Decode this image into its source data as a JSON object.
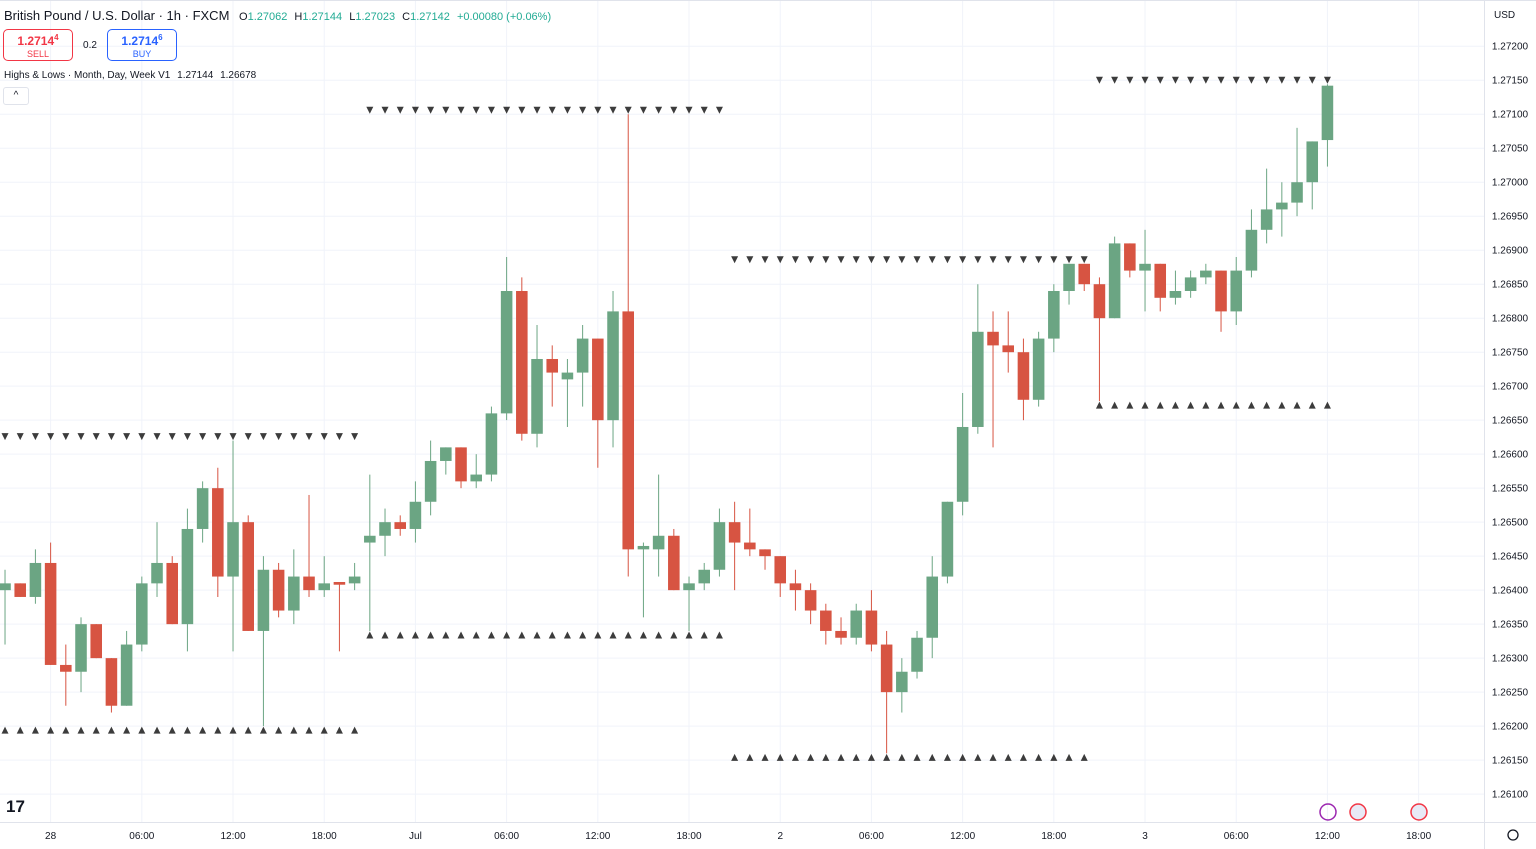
{
  "header": {
    "symbol": "British Pound / U.S. Dollar · 1h · FXCM",
    "ohlc": [
      {
        "label": "O",
        "value": "1.27062"
      },
      {
        "label": "H",
        "value": "1.27144"
      },
      {
        "label": "L",
        "value": "1.27023"
      },
      {
        "label": "C",
        "value": "1.27142"
      }
    ],
    "change": "+0.00080 (+0.06%)",
    "sell": {
      "price": "1.2714",
      "price_sup": "4",
      "label": "SELL"
    },
    "spread": "0.2",
    "buy": {
      "price": "1.2714",
      "price_sup": "6",
      "label": "BUY"
    },
    "indicator": {
      "name": "Highs & Lows · Month, Day, Week V1",
      "values": [
        "1.27144",
        "1.26678"
      ]
    },
    "currency": "USD"
  },
  "chart_data": {
    "type": "candlestick",
    "up_color": "#6ba583",
    "down_color": "#d75442",
    "grid": true,
    "open": [
      1.264,
      1.2641,
      1.2639,
      1.2644,
      1.2629,
      1.2628,
      1.2635,
      1.263,
      1.2623,
      1.2632,
      1.2641,
      1.2644,
      1.2635,
      1.2649,
      1.2655,
      1.2642,
      1.265,
      1.2634,
      1.2643,
      1.2637,
      1.2642,
      1.264,
      1.26412,
      1.2641,
      1.2647,
      1.2648,
      1.265,
      1.2649,
      1.2653,
      1.2659,
      1.2661,
      1.2656,
      1.2657,
      1.2666,
      1.2684,
      1.2663,
      1.2674,
      1.2671,
      1.2672,
      1.2677,
      1.2665,
      1.2681,
      1.2646,
      1.2646,
      1.2648,
      1.264,
      1.2641,
      1.2643,
      1.265,
      1.2647,
      1.2646,
      1.2645,
      1.2641,
      1.264,
      1.2637,
      1.2634,
      1.2633,
      1.2637,
      1.2632,
      1.2625,
      1.2628,
      1.2633,
      1.2642,
      1.2653,
      1.2664,
      1.2678,
      1.2676,
      1.2675,
      1.2668,
      1.2677,
      1.2684,
      1.2688,
      1.2685,
      1.268,
      1.2691,
      1.2687,
      1.2688,
      1.2683,
      1.2684,
      1.2686,
      1.2687,
      1.2681,
      1.2687,
      1.2693,
      1.2696,
      1.2697,
      1.27,
      1.27062
    ],
    "high": [
      1.2643,
      1.2641,
      1.2646,
      1.2647,
      1.2632,
      1.2636,
      1.2635,
      1.263,
      1.2634,
      1.2642,
      1.265,
      1.2645,
      1.2652,
      1.2656,
      1.2658,
      1.2662,
      1.2651,
      1.2645,
      1.2644,
      1.2646,
      1.2654,
      1.2645,
      1.2641,
      1.2644,
      1.2657,
      1.2652,
      1.2651,
      1.2656,
      1.2662,
      1.2661,
      1.2661,
      1.266,
      1.2667,
      1.2689,
      1.2686,
      1.2679,
      1.2676,
      1.2674,
      1.2679,
      1.2677,
      1.2684,
      1.271,
      1.2647,
      1.2657,
      1.2649,
      1.2642,
      1.2644,
      1.2652,
      1.2653,
      1.2652,
      1.2646,
      1.2645,
      1.2643,
      1.2641,
      1.2638,
      1.2636,
      1.2638,
      1.264,
      1.2634,
      1.263,
      1.2634,
      1.2645,
      1.2653,
      1.2669,
      1.2685,
      1.2681,
      1.2681,
      1.2677,
      1.2678,
      1.2685,
      1.2688,
      1.2688,
      1.2686,
      1.2692,
      1.2691,
      1.2693,
      1.2688,
      1.2687,
      1.2687,
      1.2688,
      1.2687,
      1.2689,
      1.2696,
      1.2702,
      1.27,
      1.2708,
      1.2706,
      1.27144
    ],
    "low": [
      1.2632,
      1.2639,
      1.2638,
      1.2629,
      1.2623,
      1.2625,
      1.263,
      1.2622,
      1.2623,
      1.2631,
      1.2639,
      1.2635,
      1.2631,
      1.2647,
      1.2639,
      1.2631,
      1.2634,
      1.262,
      1.2636,
      1.2635,
      1.2639,
      1.2639,
      1.2631,
      1.264,
      1.2634,
      1.2645,
      1.2648,
      1.2647,
      1.2651,
      1.2657,
      1.2655,
      1.2655,
      1.2656,
      1.2665,
      1.2662,
      1.2661,
      1.2667,
      1.2664,
      1.2667,
      1.2658,
      1.2661,
      1.2642,
      1.2636,
      1.2642,
      1.264,
      1.2634,
      1.264,
      1.2642,
      1.264,
      1.2645,
      1.2643,
      1.2639,
      1.2637,
      1.2635,
      1.2632,
      1.2632,
      1.2632,
      1.2631,
      1.2616,
      1.2622,
      1.2627,
      1.263,
      1.2641,
      1.2651,
      1.2663,
      1.2661,
      1.2672,
      1.2665,
      1.2667,
      1.2675,
      1.2682,
      1.2684,
      1.26678,
      1.268,
      1.2686,
      1.2681,
      1.2681,
      1.2682,
      1.2683,
      1.2685,
      1.2678,
      1.2679,
      1.2686,
      1.2691,
      1.2692,
      1.2695,
      1.2696,
      1.27023
    ],
    "close": [
      1.2641,
      1.2639,
      1.2644,
      1.2629,
      1.2628,
      1.2635,
      1.263,
      1.2623,
      1.2632,
      1.2641,
      1.2644,
      1.2635,
      1.2649,
      1.2655,
      1.2642,
      1.265,
      1.2634,
      1.2643,
      1.2637,
      1.2642,
      1.264,
      1.2641,
      1.26408,
      1.2642,
      1.2648,
      1.265,
      1.2649,
      1.2653,
      1.2659,
      1.2661,
      1.2656,
      1.2657,
      1.2666,
      1.2684,
      1.2663,
      1.2674,
      1.2672,
      1.2672,
      1.2677,
      1.2665,
      1.2681,
      1.2646,
      1.26465,
      1.2648,
      1.264,
      1.2641,
      1.2643,
      1.265,
      1.2647,
      1.2646,
      1.2645,
      1.2641,
      1.264,
      1.2637,
      1.2634,
      1.2633,
      1.2637,
      1.2632,
      1.2625,
      1.2628,
      1.2633,
      1.2642,
      1.2653,
      1.2664,
      1.2678,
      1.2676,
      1.2675,
      1.2668,
      1.2677,
      1.2684,
      1.2688,
      1.2685,
      1.268,
      1.2691,
      1.2687,
      1.2688,
      1.2683,
      1.2684,
      1.2686,
      1.2687,
      1.2681,
      1.2687,
      1.2693,
      1.2696,
      1.2697,
      1.27,
      1.2706,
      1.27142
    ],
    "levels": [
      {
        "type": "high",
        "value": 1.2662,
        "x": [
          0,
          23
        ]
      },
      {
        "type": "low",
        "value": 1.262,
        "x": [
          0,
          23
        ]
      },
      {
        "type": "high",
        "value": 1.271,
        "x": [
          24,
          47
        ]
      },
      {
        "type": "low",
        "value": 1.2634,
        "x": [
          24,
          47
        ]
      },
      {
        "type": "high",
        "value": 1.2688,
        "x": [
          48,
          71
        ]
      },
      {
        "type": "low",
        "value": 1.2616,
        "x": [
          48,
          71
        ]
      },
      {
        "type": "high",
        "value": 1.27144,
        "x": [
          72,
          87
        ]
      },
      {
        "type": "low",
        "value": 1.26678,
        "x": [
          72,
          87
        ]
      }
    ],
    "level_color": "#3c3c3c",
    "ylim": [
      1.26059,
      1.27268
    ],
    "yticks": [
      {
        "value": 1.261,
        "label": "1.26100"
      },
      {
        "value": 1.2615,
        "label": "1.26150"
      },
      {
        "value": 1.262,
        "label": "1.26200"
      },
      {
        "value": 1.2625,
        "label": "1.26250"
      },
      {
        "value": 1.263,
        "label": "1.26300"
      },
      {
        "value": 1.2635,
        "label": "1.26350"
      },
      {
        "value": 1.264,
        "label": "1.26400"
      },
      {
        "value": 1.2645,
        "label": "1.26450"
      },
      {
        "value": 1.265,
        "label": "1.26500"
      },
      {
        "value": 1.2655,
        "label": "1.26550"
      },
      {
        "value": 1.266,
        "label": "1.26600"
      },
      {
        "value": 1.2665,
        "label": "1.26650"
      },
      {
        "value": 1.267,
        "label": "1.26700"
      },
      {
        "value": 1.2675,
        "label": "1.26750"
      },
      {
        "value": 1.268,
        "label": "1.26800"
      },
      {
        "value": 1.2685,
        "label": "1.26850"
      },
      {
        "value": 1.269,
        "label": "1.26900"
      },
      {
        "value": 1.2695,
        "label": "1.26950"
      },
      {
        "value": 1.27,
        "label": "1.27000"
      },
      {
        "value": 1.2705,
        "label": "1.27050"
      },
      {
        "value": 1.271,
        "label": "1.27100"
      },
      {
        "value": 1.2715,
        "label": "1.27150"
      },
      {
        "value": 1.272,
        "label": "1.27200"
      }
    ],
    "xlim": [
      -0.33,
      97.3
    ],
    "xticks": [
      {
        "value": 3,
        "label": "28"
      },
      {
        "value": 9,
        "label": "06:00"
      },
      {
        "value": 15,
        "label": "12:00"
      },
      {
        "value": 21,
        "label": "18:00"
      },
      {
        "value": 27,
        "label": "Jul"
      },
      {
        "value": 33,
        "label": "06:00"
      },
      {
        "value": 39,
        "label": "12:00"
      },
      {
        "value": 45,
        "label": "18:00"
      },
      {
        "value": 51,
        "label": "2"
      },
      {
        "value": 57,
        "label": "06:00"
      },
      {
        "value": 63,
        "label": "12:00"
      },
      {
        "value": 69,
        "label": "18:00"
      },
      {
        "value": 75,
        "label": "3"
      },
      {
        "value": 81,
        "label": "06:00"
      },
      {
        "value": 87,
        "label": "12:00"
      },
      {
        "value": 93,
        "label": "18:00"
      }
    ]
  }
}
